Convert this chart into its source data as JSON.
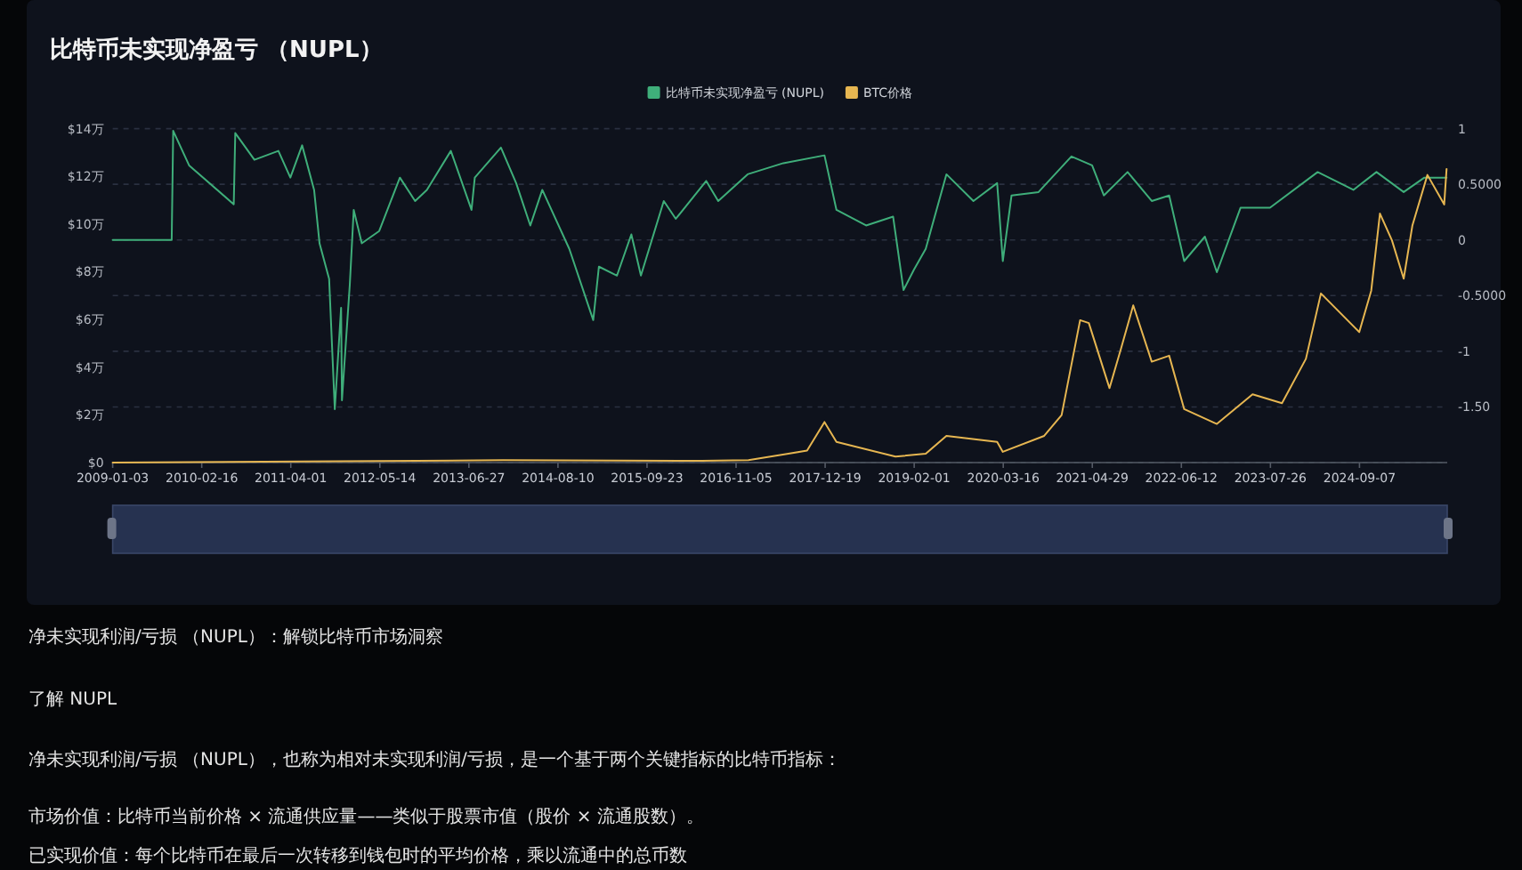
{
  "chart_data": {
    "type": "line",
    "title": "比特币未实现净盈亏 （NUPL）",
    "legend": "top",
    "grid": "y",
    "xlim": [
      "2009-01-03",
      "2025-10-15"
    ],
    "xticks": [
      "2009-01-03",
      "2010-02-16",
      "2011-04-01",
      "2012-05-14",
      "2013-06-27",
      "2014-08-10",
      "2015-09-23",
      "2016-11-05",
      "2017-12-19",
      "2019-02-01",
      "2020-03-16",
      "2021-04-29",
      "2022-06-12",
      "2023-07-26",
      "2024-09-07"
    ],
    "ylim": [
      0,
      14
    ],
    "yticks": [
      {
        "value": 0,
        "label": "$0"
      },
      {
        "value": 2,
        "label": "$2万"
      },
      {
        "value": 4,
        "label": "$4万"
      },
      {
        "value": 6,
        "label": "$6万"
      },
      {
        "value": 8,
        "label": "$8万"
      },
      {
        "value": 10,
        "label": "$10万"
      },
      {
        "value": 12,
        "label": "$12万"
      },
      {
        "value": 14,
        "label": "$14万"
      }
    ],
    "y2lim": [
      -2,
      1
    ],
    "y2ticks": [
      {
        "value": -1.5,
        "label": "-1.50"
      },
      -1,
      {
        "value": -0.5,
        "label": "-0.5000"
      },
      0,
      {
        "value": 0.5,
        "label": "0.5000"
      },
      1
    ],
    "series": [
      {
        "name": "比特币未实现净盈亏 (NUPL)",
        "color": "#3fae7a",
        "axis": "y2",
        "x": [
          "2009-01-03",
          "2009-10-01",
          "2009-10-08",
          "2009-12-20",
          "2010-07-13",
          "2010-07-20",
          "2010-10-16",
          "2011-02-03",
          "2011-03-30",
          "2011-05-23",
          "2011-07-17",
          "2011-08-11",
          "2011-09-24",
          "2011-10-20",
          "2011-11-18",
          "2011-11-22",
          "2011-12-28",
          "2012-01-15",
          "2012-02-21",
          "2012-05-11",
          "2012-08-14",
          "2012-10-23",
          "2012-12-16",
          "2013-04-05",
          "2013-07-09",
          "2013-07-24",
          "2013-11-21",
          "2014-01-30",
          "2014-04-05",
          "2014-05-30",
          "2014-10-01",
          "2015-01-19",
          "2015-02-14",
          "2015-05-08",
          "2015-07-13",
          "2015-08-26",
          "2015-12-09",
          "2016-02-02",
          "2016-06-21",
          "2016-08-15",
          "2016-12-28",
          "2017-06-10",
          "2017-12-16",
          "2018-02-09",
          "2018-06-25",
          "2018-10-27",
          "2018-12-14",
          "2019-01-30",
          "2019-03-26",
          "2019-06-29",
          "2019-10-31",
          "2020-02-17",
          "2020-03-14",
          "2020-04-23",
          "2020-08-25",
          "2021-01-23",
          "2021-04-28",
          "2021-06-21",
          "2021-10-08",
          "2022-01-27",
          "2022-04-17",
          "2022-06-25",
          "2022-09-28",
          "2022-11-22",
          "2023-03-11",
          "2023-07-24",
          "2024-02-28",
          "2024-08-10",
          "2024-11-24",
          "2025-03-29",
          "2025-07-02",
          "2025-10-12"
        ],
        "values": [
          0,
          0,
          0.98,
          0.67,
          0.32,
          0.96,
          0.72,
          0.8,
          0.56,
          0.85,
          0.45,
          -0.03,
          -0.35,
          -1.52,
          -0.61,
          -1.44,
          -0.4,
          0.27,
          -0.03,
          0.08,
          0.56,
          0.35,
          0.45,
          0.8,
          0.27,
          0.56,
          0.83,
          0.51,
          0.13,
          0.45,
          -0.08,
          -0.72,
          -0.24,
          -0.32,
          0.05,
          -0.32,
          0.35,
          0.19,
          0.53,
          0.35,
          0.59,
          0.69,
          0.76,
          0.27,
          0.13,
          0.21,
          -0.45,
          -0.27,
          -0.08,
          0.59,
          0.35,
          0.51,
          -0.19,
          0.4,
          0.43,
          0.75,
          0.67,
          0.4,
          0.61,
          0.35,
          0.4,
          -0.19,
          0.03,
          -0.29,
          0.29,
          0.29,
          0.61,
          0.45,
          0.61,
          0.43,
          0.56,
          0.56
        ]
      },
      {
        "name": "BTC价格",
        "color": "#e6b651",
        "axis": "y",
        "x": [
          "2009-01-03",
          "2013-12-01",
          "2016-06-01",
          "2017-01-01",
          "2017-09-27",
          "2017-12-16",
          "2018-02-09",
          "2018-11-07",
          "2019-03-26",
          "2019-06-29",
          "2020-02-17",
          "2020-03-14",
          "2020-09-20",
          "2020-12-09",
          "2021-03-04",
          "2021-04-13",
          "2021-07-17",
          "2021-09-10",
          "2021-11-03",
          "2022-01-27",
          "2022-04-17",
          "2022-06-25",
          "2022-11-22",
          "2023-05-05",
          "2023-09-17",
          "2024-01-05",
          "2024-03-14",
          "2024-09-06",
          "2024-10-31",
          "2024-12-10",
          "2025-02-03",
          "2025-03-29",
          "2025-05-08",
          "2025-07-16",
          "2025-10-01",
          "2025-10-12"
        ],
        "values": [
          0,
          0.1,
          0.07,
          0.1,
          0.5,
          1.7,
          0.87,
          0.25,
          0.37,
          1.12,
          0.87,
          0.45,
          1.12,
          1.99,
          5.97,
          5.85,
          3.12,
          4.85,
          6.59,
          4.23,
          4.48,
          2.24,
          1.62,
          2.86,
          2.49,
          4.35,
          7.09,
          5.47,
          7.21,
          10.44,
          9.32,
          7.71,
          9.94,
          12.06,
          10.82,
          12.31
        ]
      }
    ],
    "annotations": [
      "净未实现利润/亏损 （NUPL）：解锁比特币市场洞察",
      "了解 NUPL",
      "净未实现利润/亏损 （NUPL），也称为相对未实现利润/亏损，是一个基于两个关键指标的比特币指标：",
      "市场价值：比特币当前价格 × 流通供应量——类似于股票市值（股价 × 流通股数）。",
      "已实现价值：每个比特币在最后一次转移到钱包时的平均价格，乘以流通中的总币数"
    ]
  }
}
